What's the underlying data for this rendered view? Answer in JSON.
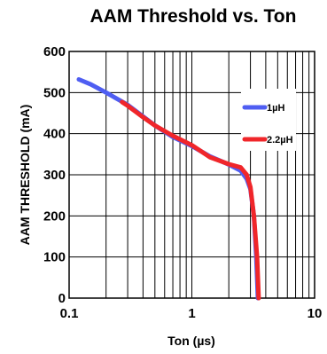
{
  "chart_data": {
    "type": "line",
    "title": "AAM Threshold  vs. Ton",
    "xlabel": "Ton (µs)",
    "ylabel": "AAM THRESHOLD (mA)",
    "x_scale": "log",
    "xlim": [
      0.1,
      10
    ],
    "ylim": [
      0,
      600
    ],
    "x_ticks": [
      0.1,
      1,
      10
    ],
    "x_tick_labels": [
      "0.1",
      "1",
      "10"
    ],
    "y_ticks": [
      0,
      100,
      200,
      300,
      400,
      500,
      600
    ],
    "y_tick_labels": [
      "0",
      "100",
      "200",
      "300",
      "400",
      "500",
      "600"
    ],
    "grid": true,
    "legend_position": "right",
    "series": [
      {
        "name": "1µH",
        "color": "#4f5ef2",
        "points": [
          [
            0.12,
            532
          ],
          [
            0.15,
            520
          ],
          [
            0.2,
            500
          ],
          [
            0.3,
            470
          ],
          [
            0.5,
            420
          ],
          [
            0.7,
            392
          ],
          [
            1.0,
            370
          ],
          [
            1.4,
            345
          ],
          [
            2.0,
            325
          ],
          [
            2.5,
            310
          ],
          [
            2.8,
            290
          ],
          [
            3.0,
            265
          ],
          [
            3.2,
            200
          ],
          [
            3.35,
            100
          ],
          [
            3.45,
            0
          ]
        ]
      },
      {
        "name": "2.2µH",
        "color": "#f0262a",
        "points": [
          [
            0.27,
            477
          ],
          [
            0.3,
            468
          ],
          [
            0.4,
            440
          ],
          [
            0.5,
            420
          ],
          [
            0.7,
            395
          ],
          [
            1.0,
            372
          ],
          [
            1.4,
            343
          ],
          [
            2.0,
            326
          ],
          [
            2.5,
            318
          ],
          [
            2.8,
            300
          ],
          [
            3.0,
            270
          ],
          [
            3.2,
            200
          ],
          [
            3.4,
            100
          ],
          [
            3.5,
            0
          ]
        ]
      }
    ]
  }
}
